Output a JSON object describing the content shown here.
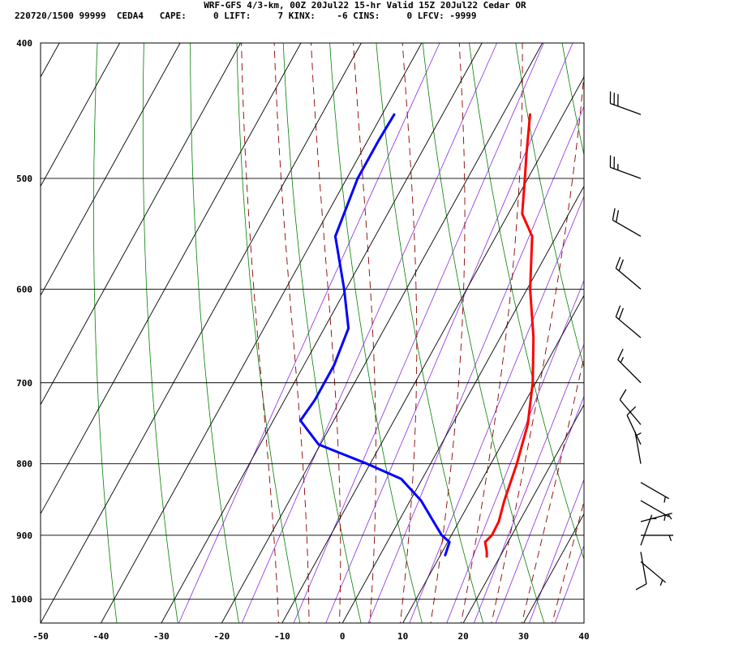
{
  "header": {
    "title": "WRF-GFS 4/3-km, 00Z 20Jul22 15-hr Valid 15Z 20Jul22 Cedar OR",
    "stats": "220720/1500 99999  CEDA4   CAPE:     0 LIFT:     7 KINX:    -6 CINS:     0 LFCV: -9999"
  },
  "colors": {
    "temperature": "#ff0000",
    "dewpoint": "#0000ff",
    "isotherm_grid": "#000000",
    "dry_adiabat": "#008000",
    "moist_adiabat": "#8b0000",
    "mixing_ratio": "#8a2be2",
    "wind_barb": "#000000"
  },
  "chart_data": {
    "type": "line",
    "subtype": "skew-T log-p sounding",
    "x_ticks": [
      "-50",
      "-40",
      "-30",
      "-20",
      "-10",
      "0",
      "10",
      "20",
      "30",
      "40"
    ],
    "y_ticks": [
      "400",
      "500",
      "600",
      "700",
      "800",
      "900",
      "1000"
    ],
    "xlim": [
      -50,
      40
    ],
    "ylim": [
      1040,
      400
    ],
    "y_scale": "log",
    "grid": true,
    "series": [
      {
        "key": "temperature",
        "points": [
          {
            "p": 450,
            "t": -15.5
          },
          {
            "p": 480,
            "t": -12.5
          },
          {
            "p": 500,
            "t": -10.5
          },
          {
            "p": 530,
            "t": -7.7
          },
          {
            "p": 550,
            "t": -4.0
          },
          {
            "p": 600,
            "t": 0.5
          },
          {
            "p": 650,
            "t": 5.5
          },
          {
            "p": 700,
            "t": 9.5
          },
          {
            "p": 750,
            "t": 12.5
          },
          {
            "p": 800,
            "t": 14.3
          },
          {
            "p": 850,
            "t": 15.6
          },
          {
            "p": 880,
            "t": 16.6
          },
          {
            "p": 900,
            "t": 16.7
          },
          {
            "p": 910,
            "t": 16.2
          },
          {
            "p": 925,
            "t": 17.4
          },
          {
            "p": 932,
            "t": 17.8
          }
        ]
      },
      {
        "key": "dewpoint",
        "points": [
          {
            "p": 450,
            "t": -38.0
          },
          {
            "p": 470,
            "t": -38.2
          },
          {
            "p": 500,
            "t": -38.2
          },
          {
            "p": 550,
            "t": -36.6
          },
          {
            "p": 600,
            "t": -30.3
          },
          {
            "p": 640,
            "t": -26.0
          },
          {
            "p": 680,
            "t": -25.0
          },
          {
            "p": 720,
            "t": -25.0
          },
          {
            "p": 745,
            "t": -25.5
          },
          {
            "p": 775,
            "t": -20.3
          },
          {
            "p": 800,
            "t": -10.5
          },
          {
            "p": 820,
            "t": -3.5
          },
          {
            "p": 850,
            "t": 1.8
          },
          {
            "p": 880,
            "t": 5.8
          },
          {
            "p": 900,
            "t": 8.4
          },
          {
            "p": 910,
            "t": 10.3
          },
          {
            "p": 930,
            "t": 10.8
          }
        ]
      }
    ],
    "wind_barbs": [
      {
        "p": 450,
        "dir": 290,
        "speed": 30
      },
      {
        "p": 500,
        "dir": 290,
        "speed": 25
      },
      {
        "p": 550,
        "dir": 300,
        "speed": 20
      },
      {
        "p": 600,
        "dir": 310,
        "speed": 20
      },
      {
        "p": 650,
        "dir": 310,
        "speed": 20
      },
      {
        "p": 700,
        "dir": 315,
        "speed": 15
      },
      {
        "p": 750,
        "dir": 320,
        "speed": 10
      },
      {
        "p": 775,
        "dir": 335,
        "speed": 10
      },
      {
        "p": 800,
        "dir": 350,
        "speed": 5
      },
      {
        "p": 825,
        "dir": 120,
        "speed": 5
      },
      {
        "p": 850,
        "dir": 120,
        "speed": 5
      },
      {
        "p": 880,
        "dir": 75,
        "speed": 5
      },
      {
        "p": 900,
        "dir": 90,
        "speed": 5
      },
      {
        "p": 915,
        "dir": 20,
        "speed": 5
      },
      {
        "p": 925,
        "dir": 170,
        "speed": 10
      },
      {
        "p": 940,
        "dir": 130,
        "speed": 5
      }
    ]
  }
}
